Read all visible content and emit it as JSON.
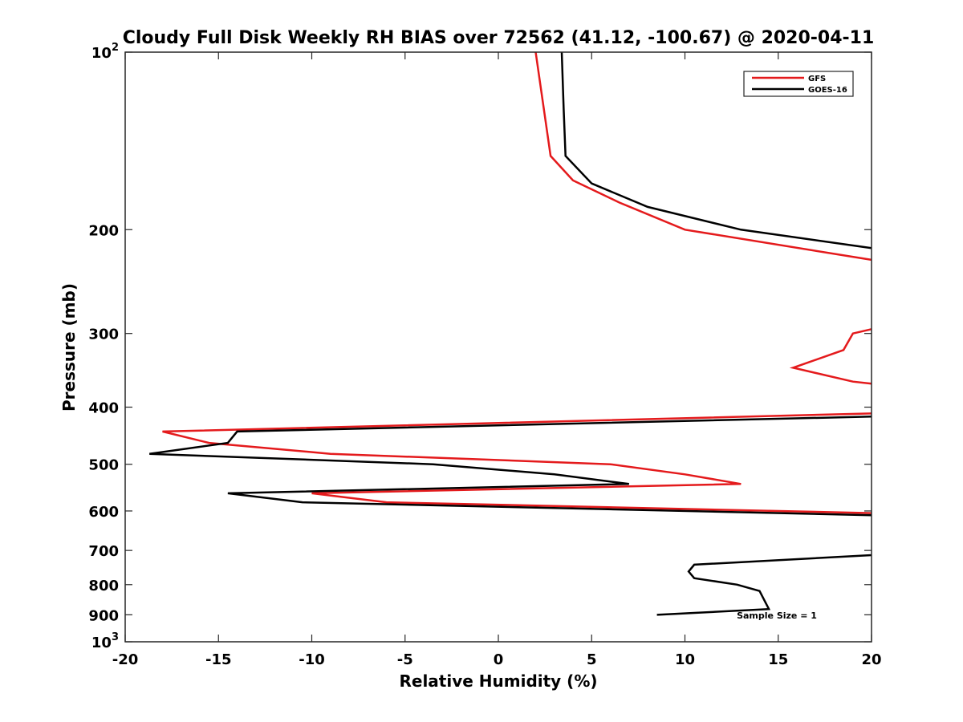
{
  "chart_data": {
    "type": "line",
    "title": "Cloudy Full Disk Weekly RH BIAS over 72562 (41.12, -100.67) @ 2020-04-11",
    "xlabel": "Relative Humidity (%)",
    "ylabel": "Pressure (mb)",
    "xlim": [
      -20,
      20
    ],
    "ylim": [
      100,
      1000
    ],
    "y_scale": "log",
    "y_reversed": true,
    "grid": false,
    "legend_position": "top-right",
    "x_ticks": [
      "-20",
      "-15",
      "-10",
      "-5",
      "0",
      "5",
      "10",
      "15",
      "20"
    ],
    "y_ticks": [
      {
        "base": "10",
        "exp": "2"
      },
      {
        "base": "200",
        "exp": ""
      },
      {
        "base": "300",
        "exp": ""
      },
      {
        "base": "400",
        "exp": ""
      },
      {
        "base": "500",
        "exp": ""
      },
      {
        "base": "600",
        "exp": ""
      },
      {
        "base": "700",
        "exp": ""
      },
      {
        "base": "800",
        "exp": ""
      },
      {
        "base": "900",
        "exp": ""
      },
      {
        "base": "10",
        "exp": "3"
      }
    ],
    "series": [
      {
        "name": "GFS",
        "color": "#e41a1c",
        "points": [
          [
            2.0,
            100
          ],
          [
            2.8,
            150
          ],
          [
            4.0,
            165
          ],
          [
            6.5,
            180
          ],
          [
            10.0,
            200
          ],
          [
            20.0,
            225
          ],
          null,
          [
            20.0,
            295
          ],
          [
            19.0,
            300
          ],
          [
            18.5,
            320
          ],
          [
            15.8,
            343
          ],
          [
            19.0,
            362
          ],
          [
            20.0,
            365
          ],
          null,
          [
            20.0,
            410
          ],
          [
            -18.0,
            440
          ],
          [
            -15.5,
            460
          ],
          [
            -9.0,
            480
          ],
          [
            6.0,
            500
          ],
          [
            10.0,
            520
          ],
          [
            13.0,
            540
          ],
          [
            -10.0,
            560
          ],
          [
            -6.0,
            580
          ],
          [
            20.0,
            605
          ]
        ]
      },
      {
        "name": "GOES-16",
        "color": "#000000",
        "points": [
          [
            3.4,
            100
          ],
          [
            3.5,
            125
          ],
          [
            3.6,
            150
          ],
          [
            5.0,
            167
          ],
          [
            8.0,
            183
          ],
          [
            13.0,
            200
          ],
          [
            20.0,
            215
          ],
          null,
          [
            20.0,
            415
          ],
          [
            -14.0,
            440
          ],
          [
            -14.5,
            460
          ],
          [
            -18.7,
            480
          ],
          [
            -3.5,
            500
          ],
          [
            3.0,
            520
          ],
          [
            7.0,
            540
          ],
          [
            -14.5,
            560
          ],
          [
            -10.5,
            580
          ],
          [
            20.0,
            610
          ],
          null,
          [
            20.0,
            713
          ],
          [
            10.5,
            740
          ],
          [
            10.2,
            760
          ],
          [
            10.5,
            780
          ],
          [
            12.8,
            800
          ],
          [
            14.0,
            820
          ],
          [
            14.5,
            880
          ],
          [
            8.5,
            900
          ]
        ]
      }
    ],
    "annotation": "Sample Size = 1"
  }
}
